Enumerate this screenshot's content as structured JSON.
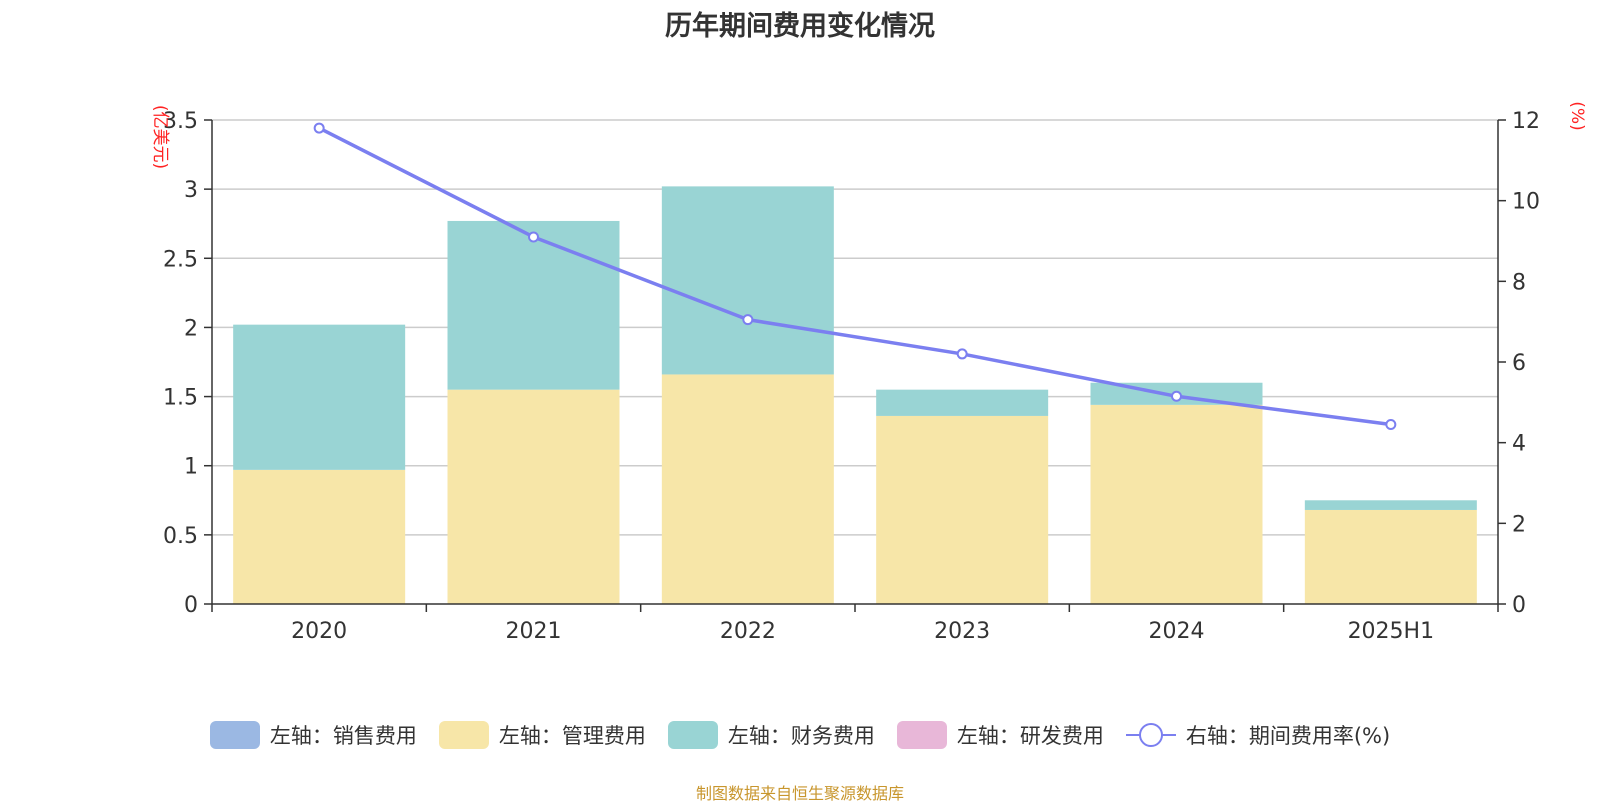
{
  "title": "历年期间费用变化情况",
  "source": "制图数据来自恒生聚源数据库",
  "chart_data": {
    "type": "bar",
    "stacked": true,
    "title": "历年期间费用变化情况",
    "categories": [
      "2020",
      "2021",
      "2022",
      "2023",
      "2024",
      "2025H1"
    ],
    "y_left": {
      "unit": "(亿美元)",
      "min": 0,
      "max": 3.5,
      "ticks": [
        "0",
        "0.5",
        "1",
        "1.5",
        "2",
        "2.5",
        "3",
        "3.5"
      ]
    },
    "y_right": {
      "unit": "(%)",
      "min": 0,
      "max": 12,
      "ticks": [
        "0",
        "2",
        "4",
        "6",
        "8",
        "10",
        "12"
      ]
    },
    "grid": true,
    "legend_position": "bottom",
    "series": [
      {
        "name": "左轴：销售费用",
        "axis": "left",
        "type": "bar",
        "color": "#9bb8e3",
        "values": [
          0,
          0,
          0,
          0,
          0,
          0
        ]
      },
      {
        "name": "左轴：管理费用",
        "axis": "left",
        "type": "bar",
        "color": "#f7e6a8",
        "values": [
          0.97,
          1.55,
          1.66,
          1.36,
          1.44,
          0.68
        ]
      },
      {
        "name": "左轴：财务费用",
        "axis": "left",
        "type": "bar",
        "color": "#99d4d4",
        "values": [
          1.05,
          1.22,
          1.36,
          0.19,
          0.16,
          0.07
        ]
      },
      {
        "name": "左轴：研发费用",
        "axis": "left",
        "type": "bar",
        "color": "#e8b7d8",
        "values": [
          0,
          0,
          0,
          0,
          0,
          0
        ]
      },
      {
        "name": "右轴：期间费用率(%)",
        "axis": "right",
        "type": "line",
        "color": "#7b7ff0",
        "values": [
          11.8,
          9.1,
          7.05,
          6.2,
          5.15,
          4.45
        ]
      }
    ]
  }
}
